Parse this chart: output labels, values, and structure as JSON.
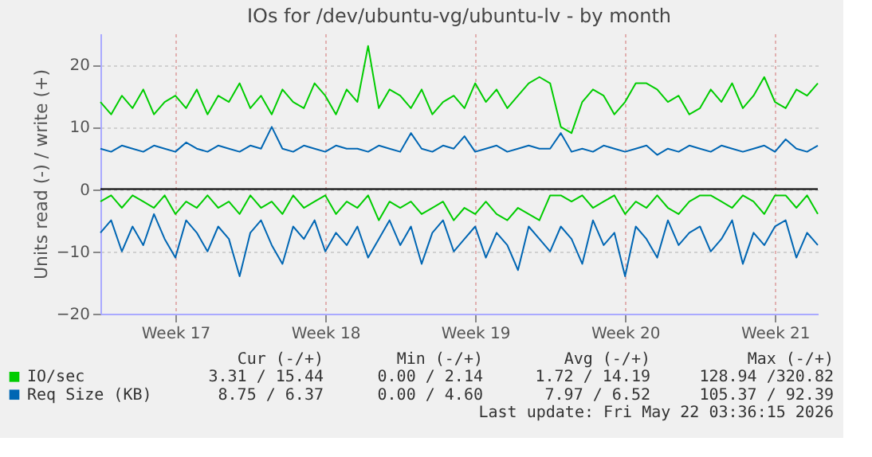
{
  "chart_data": {
    "type": "line",
    "title": "IOs for /dev/ubuntu-vg/ubuntu-lv - by month",
    "ylabel": "Units read (-) / write (+)",
    "categories": [
      null,
      null,
      null,
      null,
      null,
      null,
      null,
      "Week 17",
      null,
      null,
      null,
      null,
      null,
      null,
      null,
      null,
      null,
      null,
      null,
      null,
      null,
      "Week 18",
      null,
      null,
      null,
      null,
      null,
      null,
      null,
      null,
      null,
      null,
      null,
      null,
      null,
      "Week 19",
      null,
      null,
      null,
      null,
      null,
      null,
      null,
      null,
      null,
      null,
      null,
      null,
      null,
      "Week 20",
      null,
      null,
      null,
      null,
      null,
      null,
      null,
      null,
      null,
      null,
      null,
      null,
      null,
      "Week 21",
      null,
      null,
      null,
      null
    ],
    "ylim": [
      -20,
      25
    ],
    "yticks": [
      -20,
      -10,
      0,
      10,
      20
    ],
    "series": [
      {
        "name": "IO/sec",
        "color": "#00cc00",
        "values": [
          14,
          12,
          15,
          13,
          16,
          12,
          14,
          15,
          13,
          16,
          12,
          15,
          14,
          17,
          13,
          15,
          12,
          16,
          14,
          13,
          17,
          15,
          12,
          16,
          14,
          23,
          13,
          16,
          15,
          13,
          16,
          12,
          14,
          15,
          13,
          17,
          14,
          16,
          13,
          15,
          17,
          18,
          17,
          10,
          9,
          14,
          16,
          15,
          12,
          14,
          17,
          17,
          16,
          14,
          15,
          12,
          13,
          16,
          14,
          17,
          13,
          15,
          18,
          14,
          13,
          16,
          15,
          17
        ]
      },
      {
        "name": "Req Size (KB)",
        "color": "#0066b3",
        "values": [
          6.5,
          6,
          7,
          6.5,
          6,
          7,
          6.5,
          6,
          7.5,
          6.5,
          6,
          7,
          6.5,
          6,
          7,
          6.5,
          10,
          6.5,
          6,
          7,
          6.5,
          6,
          7,
          6.5,
          6.5,
          6,
          7,
          6.5,
          6,
          9,
          6.5,
          6,
          7,
          6.5,
          8.5,
          6,
          6.5,
          7,
          6,
          6.5,
          7,
          6.5,
          6.5,
          9,
          6,
          6.5,
          6,
          7,
          6.5,
          6,
          6.5,
          7,
          5.5,
          6.5,
          6,
          7,
          6.5,
          6,
          7,
          6.5,
          6,
          6.5,
          7,
          6,
          8,
          6.5,
          6,
          7
        ]
      },
      {
        "color": "#00cc00",
        "values": [
          -2,
          -1,
          -3,
          -1,
          -2,
          -3,
          -1,
          -4,
          -2,
          -3,
          -1,
          -3,
          -2,
          -4,
          -1,
          -3,
          -2,
          -4,
          -1,
          -3,
          -2,
          -1,
          -4,
          -2,
          -3,
          -1,
          -5,
          -2,
          -3,
          -2,
          -4,
          -3,
          -2,
          -5,
          -3,
          -4,
          -2,
          -4,
          -5,
          -3,
          -4,
          -5,
          -1,
          -1,
          -2,
          -1,
          -3,
          -2,
          -1,
          -4,
          -2,
          -3,
          -1,
          -3,
          -4,
          -2,
          -1,
          -1,
          -2,
          -3,
          -1,
          -2,
          -4,
          -1,
          -1,
          -3,
          -1,
          -4
        ]
      },
      {
        "color": "#0066b3",
        "values": [
          -7,
          -5,
          -10,
          -6,
          -9,
          -4,
          -8,
          -11,
          -5,
          -7,
          -10,
          -6,
          -8,
          -14,
          -7,
          -5,
          -9,
          -12,
          -6,
          -8,
          -5,
          -10,
          -7,
          -9,
          -6,
          -11,
          -8,
          -5,
          -9,
          -6,
          -12,
          -7,
          -5,
          -10,
          -8,
          -6,
          -11,
          -7,
          -9,
          -13,
          -6,
          -8,
          -10,
          -6,
          -8,
          -12,
          -5,
          -9,
          -7,
          -14,
          -6,
          -8,
          -11,
          -5,
          -9,
          -7,
          -6,
          -10,
          -8,
          -5,
          -12,
          -7,
          -9,
          -6,
          -5,
          -11,
          -7,
          -9
        ]
      }
    ],
    "ref_lines": [
      {
        "axis": "y",
        "value": 0,
        "color": "#000000"
      }
    ],
    "grid": true,
    "legend": "bottom",
    "annotations": [
      "Cur (-/+)",
      "Min (-/+)",
      "Avg (-/+)",
      "Max (-/+)",
      "3.31 / 15.44",
      "0.00 /  2.14",
      "1.72 / 14.19",
      "128.94 /320.82",
      "8.75 /  6.37",
      "0.00 /  4.60",
      "7.97 /  6.52",
      "105.37 / 92.39",
      "Last update: Fri May 22 03:36:15 2026"
    ]
  }
}
